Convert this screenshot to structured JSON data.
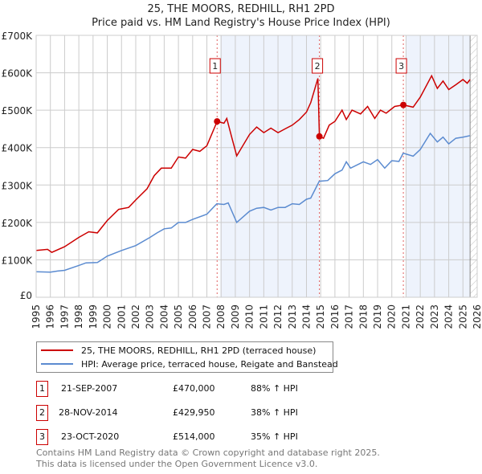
{
  "chart_data": {
    "type": "line",
    "title": "25, THE MOORS, REDHILL, RH1 2PD",
    "subtitle": "Price paid vs. HM Land Registry's House Price Index (HPI)",
    "xlim": [
      1995,
      2026
    ],
    "ylim": [
      0,
      700000
    ],
    "y_ticks": [
      {
        "v": 0,
        "label": "£0"
      },
      {
        "v": 100000,
        "label": "£100K"
      },
      {
        "v": 200000,
        "label": "£200K"
      },
      {
        "v": 300000,
        "label": "£300K"
      },
      {
        "v": 400000,
        "label": "£400K"
      },
      {
        "v": 500000,
        "label": "£500K"
      },
      {
        "v": 600000,
        "label": "£600K"
      },
      {
        "v": 700000,
        "label": "£700K"
      }
    ],
    "x_ticks": [
      "1995",
      "1996",
      "1997",
      "1998",
      "1999",
      "2000",
      "2001",
      "2002",
      "2003",
      "2004",
      "2005",
      "2006",
      "2007",
      "2008",
      "2009",
      "2010",
      "2011",
      "2012",
      "2013",
      "2014",
      "2015",
      "2016",
      "2017",
      "2018",
      "2019",
      "2020",
      "2021",
      "2022",
      "2023",
      "2024",
      "2025",
      "2026"
    ],
    "grid": true,
    "series": [
      {
        "name": "25, THE MOORS, REDHILL, RH1 2PD (terraced house)",
        "color": "#cc0000",
        "points": [
          [
            1995,
            125
          ],
          [
            1995.8,
            128
          ],
          [
            1996.1,
            120
          ],
          [
            1997,
            135
          ],
          [
            1998,
            160
          ],
          [
            1998.7,
            175
          ],
          [
            1999.3,
            172
          ],
          [
            2000,
            205
          ],
          [
            2000.8,
            235
          ],
          [
            2001.5,
            240
          ],
          [
            2002,
            260
          ],
          [
            2002.8,
            290
          ],
          [
            2003.3,
            325
          ],
          [
            2003.8,
            345
          ],
          [
            2004.5,
            345
          ],
          [
            2005,
            375
          ],
          [
            2005.5,
            372
          ],
          [
            2006,
            395
          ],
          [
            2006.5,
            390
          ],
          [
            2007,
            405
          ],
          [
            2007.72,
            470
          ],
          [
            2008.2,
            465
          ],
          [
            2008.4,
            478
          ],
          [
            2008.8,
            420
          ],
          [
            2009.1,
            378
          ],
          [
            2010,
            435
          ],
          [
            2010.5,
            455
          ],
          [
            2011,
            440
          ],
          [
            2011.5,
            452
          ],
          [
            2012,
            440
          ],
          [
            2012.5,
            450
          ],
          [
            2013,
            460
          ],
          [
            2013.5,
            475
          ],
          [
            2014,
            495
          ],
          [
            2014.3,
            520
          ],
          [
            2014.8,
            585
          ],
          [
            2014.91,
            430
          ],
          [
            2015.2,
            425
          ],
          [
            2015.6,
            460
          ],
          [
            2016,
            470
          ],
          [
            2016.5,
            500
          ],
          [
            2016.8,
            475
          ],
          [
            2017.2,
            500
          ],
          [
            2017.8,
            490
          ],
          [
            2018.3,
            510
          ],
          [
            2018.8,
            478
          ],
          [
            2019.2,
            500
          ],
          [
            2019.6,
            492
          ],
          [
            2020.2,
            510
          ],
          [
            2020.81,
            514
          ],
          [
            2021.5,
            508
          ],
          [
            2022,
            535
          ],
          [
            2022.8,
            592
          ],
          [
            2023.2,
            558
          ],
          [
            2023.6,
            578
          ],
          [
            2024,
            555
          ],
          [
            2024.5,
            568
          ],
          [
            2025,
            582
          ],
          [
            2025.3,
            572
          ],
          [
            2025.5,
            582
          ]
        ]
      },
      {
        "name": "HPI: Average price, terraced house, Reigate and Banstead",
        "color": "#5b8bd0",
        "points": [
          [
            1995,
            68
          ],
          [
            1996,
            67
          ],
          [
            1996.5,
            70
          ],
          [
            1997,
            72
          ],
          [
            1998,
            85
          ],
          [
            1998.5,
            92
          ],
          [
            1999.3,
            93
          ],
          [
            2000,
            110
          ],
          [
            2001,
            125
          ],
          [
            2002,
            138
          ],
          [
            2003,
            160
          ],
          [
            2003.5,
            172
          ],
          [
            2004,
            183
          ],
          [
            2004.5,
            185
          ],
          [
            2005,
            200
          ],
          [
            2005.5,
            200
          ],
          [
            2006,
            208
          ],
          [
            2007,
            222
          ],
          [
            2007.7,
            250
          ],
          [
            2008.2,
            248
          ],
          [
            2008.5,
            252
          ],
          [
            2009.1,
            200
          ],
          [
            2010,
            230
          ],
          [
            2010.5,
            238
          ],
          [
            2011,
            240
          ],
          [
            2011.5,
            233
          ],
          [
            2012,
            240
          ],
          [
            2012.5,
            240
          ],
          [
            2013,
            250
          ],
          [
            2013.5,
            248
          ],
          [
            2014,
            262
          ],
          [
            2014.3,
            265
          ],
          [
            2014.9,
            310
          ],
          [
            2015.5,
            312
          ],
          [
            2016,
            330
          ],
          [
            2016.5,
            340
          ],
          [
            2016.8,
            362
          ],
          [
            2017.1,
            345
          ],
          [
            2018,
            362
          ],
          [
            2018.5,
            355
          ],
          [
            2019,
            368
          ],
          [
            2019.5,
            345
          ],
          [
            2020,
            365
          ],
          [
            2020.5,
            363
          ],
          [
            2020.8,
            385
          ],
          [
            2021.5,
            377
          ],
          [
            2022,
            395
          ],
          [
            2022.7,
            438
          ],
          [
            2023.2,
            415
          ],
          [
            2023.6,
            428
          ],
          [
            2024,
            410
          ],
          [
            2024.5,
            425
          ],
          [
            2025,
            428
          ],
          [
            2025.5,
            432
          ]
        ]
      }
    ],
    "value_unit": "£K",
    "sales": [
      {
        "n": "1",
        "x": 2007.72,
        "y": 470
      },
      {
        "n": "2",
        "x": 2014.91,
        "y": 429.95
      },
      {
        "n": "3",
        "x": 2020.81,
        "y": 514
      }
    ],
    "shaded_ranges": [
      [
        2007.72,
        2014.91
      ],
      [
        2020.81,
        2025.5
      ]
    ],
    "forecast_hatch": [
      2025.5,
      2026
    ],
    "legend_placement": "below"
  },
  "table": [
    {
      "n": "1",
      "date": "21-SEP-2007",
      "price": "£470,000",
      "hpi": "88% ↑ HPI"
    },
    {
      "n": "2",
      "date": "28-NOV-2014",
      "price": "£429,950",
      "hpi": "38% ↑ HPI"
    },
    {
      "n": "3",
      "date": "23-OCT-2020",
      "price": "£514,000",
      "hpi": "35% ↑ HPI"
    }
  ],
  "footer": [
    "Contains HM Land Registry data © Crown copyright and database right 2025.",
    "This data is licensed under the Open Government Licence v3.0."
  ]
}
